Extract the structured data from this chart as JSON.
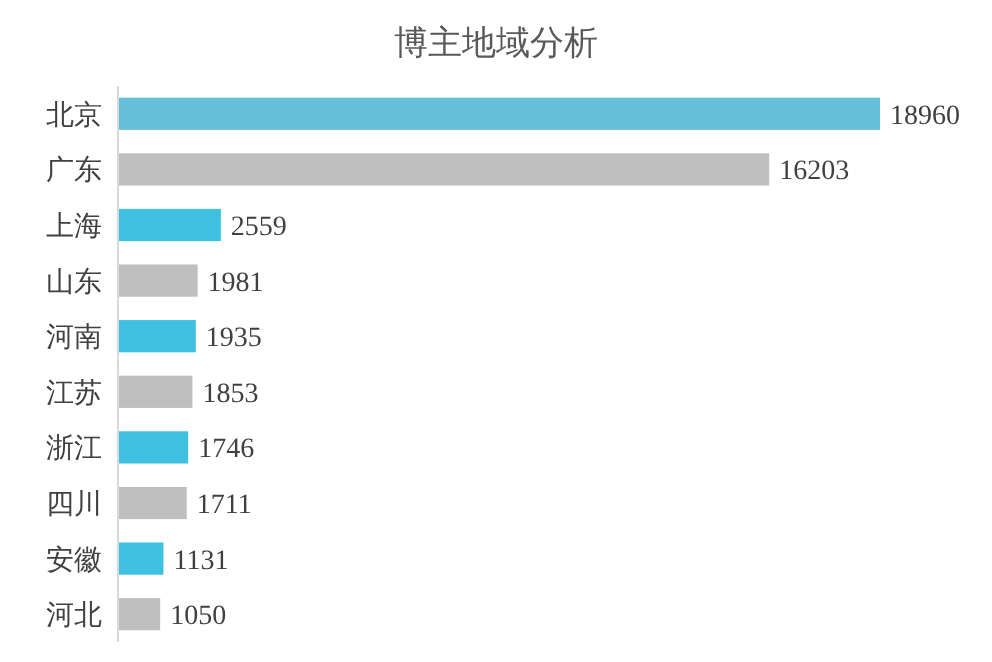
{
  "chart_data": {
    "type": "bar",
    "orientation": "horizontal",
    "title": "博主地域分析",
    "categories": [
      "北京",
      "广东",
      "上海",
      "山东",
      "河南",
      "江苏",
      "浙江",
      "四川",
      "安徽",
      "河北"
    ],
    "values": [
      18960,
      16203,
      2559,
      1981,
      1935,
      1853,
      1746,
      1711,
      1131,
      1050
    ],
    "colors": [
      "#65bfd8",
      "#bfbfbf",
      "#3ec1e0",
      "#bfbfbf",
      "#3ec1e0",
      "#bfbfbf",
      "#3ec1e0",
      "#bfbfbf",
      "#3ec1e0",
      "#bfbfbf"
    ],
    "data_labels": true
  }
}
